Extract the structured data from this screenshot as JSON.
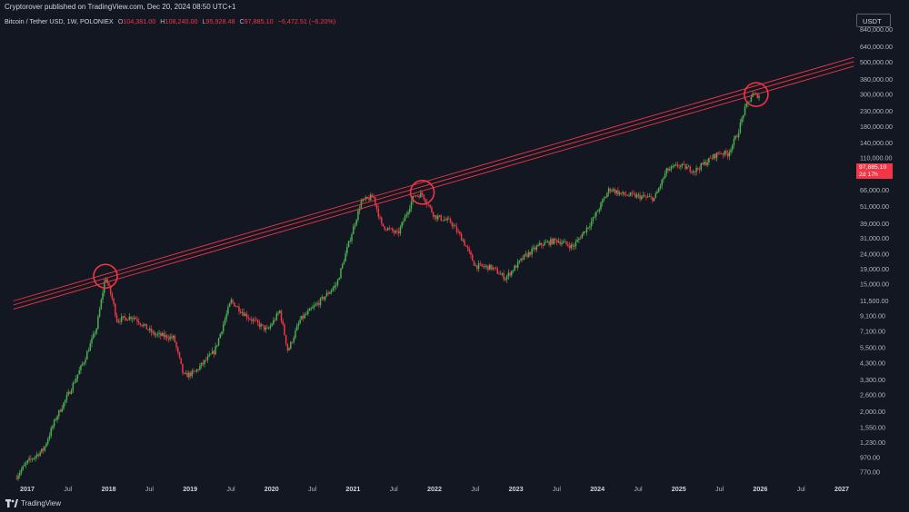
{
  "header": {
    "published": "Cryptorover published on TradingView.com, Dec 20, 2024 08:50 UTC+1",
    "symbol": "Bitcoin / Tether USD, 1W, POLONIEX",
    "ohlc": [
      {
        "key": "O",
        "value": "104,381.00"
      },
      {
        "key": "H",
        "value": "108,240.00"
      },
      {
        "key": "L",
        "value": "95,928.48"
      },
      {
        "key": "C",
        "value": "97,885.10"
      }
    ],
    "change": "−6,472.51 (−6.20%)"
  },
  "currency_button": "USDT",
  "last_price": {
    "value": "97,885.10",
    "countdown": "2d 17h"
  },
  "footer": {
    "brand": "TradingView"
  },
  "colors": {
    "background": "#131722",
    "up": "#4caf50",
    "down": "#f23645",
    "line": "#f23645",
    "axis_text": "#b2b5be"
  },
  "chart_data": {
    "type": "candlestick",
    "title": "Bitcoin / Tether USD, 1W, POLONIEX",
    "y_scale": "log",
    "y_ticks": [
      770,
      970,
      1230,
      1550,
      2000,
      2600,
      3300,
      4300,
      5500,
      7100,
      9100,
      11500,
      15000,
      19000,
      24000,
      31000,
      39000,
      51000,
      66000,
      110000,
      140000,
      180000,
      230000,
      300000,
      380000,
      500000,
      640000,
      840000
    ],
    "y_tick_labels": [
      "770.00",
      "970.00",
      "1,230.00",
      "1,550.00",
      "2,000.00",
      "2,600.00",
      "3,300.00",
      "4,300.00",
      "5,500.00",
      "7,100.00",
      "9,100.00",
      "11,500.00",
      "15,000.00",
      "19,000.00",
      "24,000.00",
      "31,000.00",
      "39,000.00",
      "51,000.00",
      "66,000.00",
      "110,000.00",
      "140,000.00",
      "180,000.00",
      "230,000.00",
      "300,000.00",
      "380,000.00",
      "500,000.00",
      "640,000.00",
      "840,000.00"
    ],
    "x_ticks": [
      {
        "t": 2017.0,
        "label": "2017",
        "year": true
      },
      {
        "t": 2017.5,
        "label": "Jul",
        "year": false
      },
      {
        "t": 2018.0,
        "label": "2018",
        "year": true
      },
      {
        "t": 2018.5,
        "label": "Jul",
        "year": false
      },
      {
        "t": 2019.0,
        "label": "2019",
        "year": true
      },
      {
        "t": 2019.5,
        "label": "Jul",
        "year": false
      },
      {
        "t": 2020.0,
        "label": "2020",
        "year": true
      },
      {
        "t": 2020.5,
        "label": "Jul",
        "year": false
      },
      {
        "t": 2021.0,
        "label": "2021",
        "year": true
      },
      {
        "t": 2021.5,
        "label": "Jul",
        "year": false
      },
      {
        "t": 2022.0,
        "label": "2022",
        "year": true
      },
      {
        "t": 2022.5,
        "label": "Jul",
        "year": false
      },
      {
        "t": 2023.0,
        "label": "2023",
        "year": true
      },
      {
        "t": 2023.5,
        "label": "Jul",
        "year": false
      },
      {
        "t": 2024.0,
        "label": "2024",
        "year": true
      },
      {
        "t": 2024.5,
        "label": "Jul",
        "year": false
      },
      {
        "t": 2025.0,
        "label": "2025",
        "year": true
      },
      {
        "t": 2025.5,
        "label": "Jul",
        "year": false
      },
      {
        "t": 2026.0,
        "label": "2026",
        "year": true
      },
      {
        "t": 2026.5,
        "label": "Jul",
        "year": false
      },
      {
        "t": 2027.0,
        "label": "2027",
        "year": true
      }
    ],
    "price_path": [
      [
        2016.85,
        700
      ],
      [
        2017.0,
        900
      ],
      [
        2017.2,
        1100
      ],
      [
        2017.35,
        1800
      ],
      [
        2017.5,
        2600
      ],
      [
        2017.7,
        4500
      ],
      [
        2017.85,
        7500
      ],
      [
        2017.96,
        17000
      ],
      [
        2018.05,
        11500
      ],
      [
        2018.1,
        8500
      ],
      [
        2018.3,
        9000
      ],
      [
        2018.55,
        6800
      ],
      [
        2018.8,
        6400
      ],
      [
        2018.92,
        3500
      ],
      [
        2019.05,
        3700
      ],
      [
        2019.3,
        5200
      ],
      [
        2019.5,
        11500
      ],
      [
        2019.7,
        9000
      ],
      [
        2019.95,
        7200
      ],
      [
        2020.1,
        9800
      ],
      [
        2020.2,
        5200
      ],
      [
        2020.35,
        8500
      ],
      [
        2020.6,
        11500
      ],
      [
        2020.8,
        15000
      ],
      [
        2020.95,
        29000
      ],
      [
        2021.1,
        55000
      ],
      [
        2021.25,
        60000
      ],
      [
        2021.35,
        38000
      ],
      [
        2021.55,
        33000
      ],
      [
        2021.75,
        61000
      ],
      [
        2021.85,
        62000
      ],
      [
        2022.0,
        44000
      ],
      [
        2022.2,
        40000
      ],
      [
        2022.35,
        30000
      ],
      [
        2022.5,
        20000
      ],
      [
        2022.7,
        19500
      ],
      [
        2022.87,
        16500
      ],
      [
        2023.1,
        23000
      ],
      [
        2023.3,
        28000
      ],
      [
        2023.5,
        30000
      ],
      [
        2023.7,
        27000
      ],
      [
        2023.95,
        42000
      ],
      [
        2024.15,
        68000
      ],
      [
        2024.3,
        62000
      ],
      [
        2024.5,
        60000
      ],
      [
        2024.7,
        58000
      ],
      [
        2024.85,
        90000
      ],
      [
        2025.0,
        98000
      ],
      [
        2025.2,
        90000
      ],
      [
        2025.4,
        110000
      ],
      [
        2025.5,
        120000
      ],
      [
        2025.6,
        117000
      ],
      [
        2025.72,
        160000
      ],
      [
        2025.8,
        230000
      ],
      [
        2025.9,
        300000
      ],
      [
        2026.0,
        295000
      ]
    ],
    "trendlines": [
      {
        "name": "upper",
        "from": [
          2016.83,
          11500
        ],
        "to": [
          2027.15,
          540000
        ]
      },
      {
        "name": "middle",
        "from": [
          2016.83,
          10800
        ],
        "to": [
          2027.15,
          505000
        ]
      },
      {
        "name": "lower",
        "from": [
          2016.83,
          10100
        ],
        "to": [
          2027.15,
          470000
        ]
      }
    ],
    "highlight_circles": [
      {
        "t": 2017.96,
        "price": 17000
      },
      {
        "t": 2021.85,
        "price": 64000
      },
      {
        "t": 2025.95,
        "price": 300000
      }
    ]
  }
}
